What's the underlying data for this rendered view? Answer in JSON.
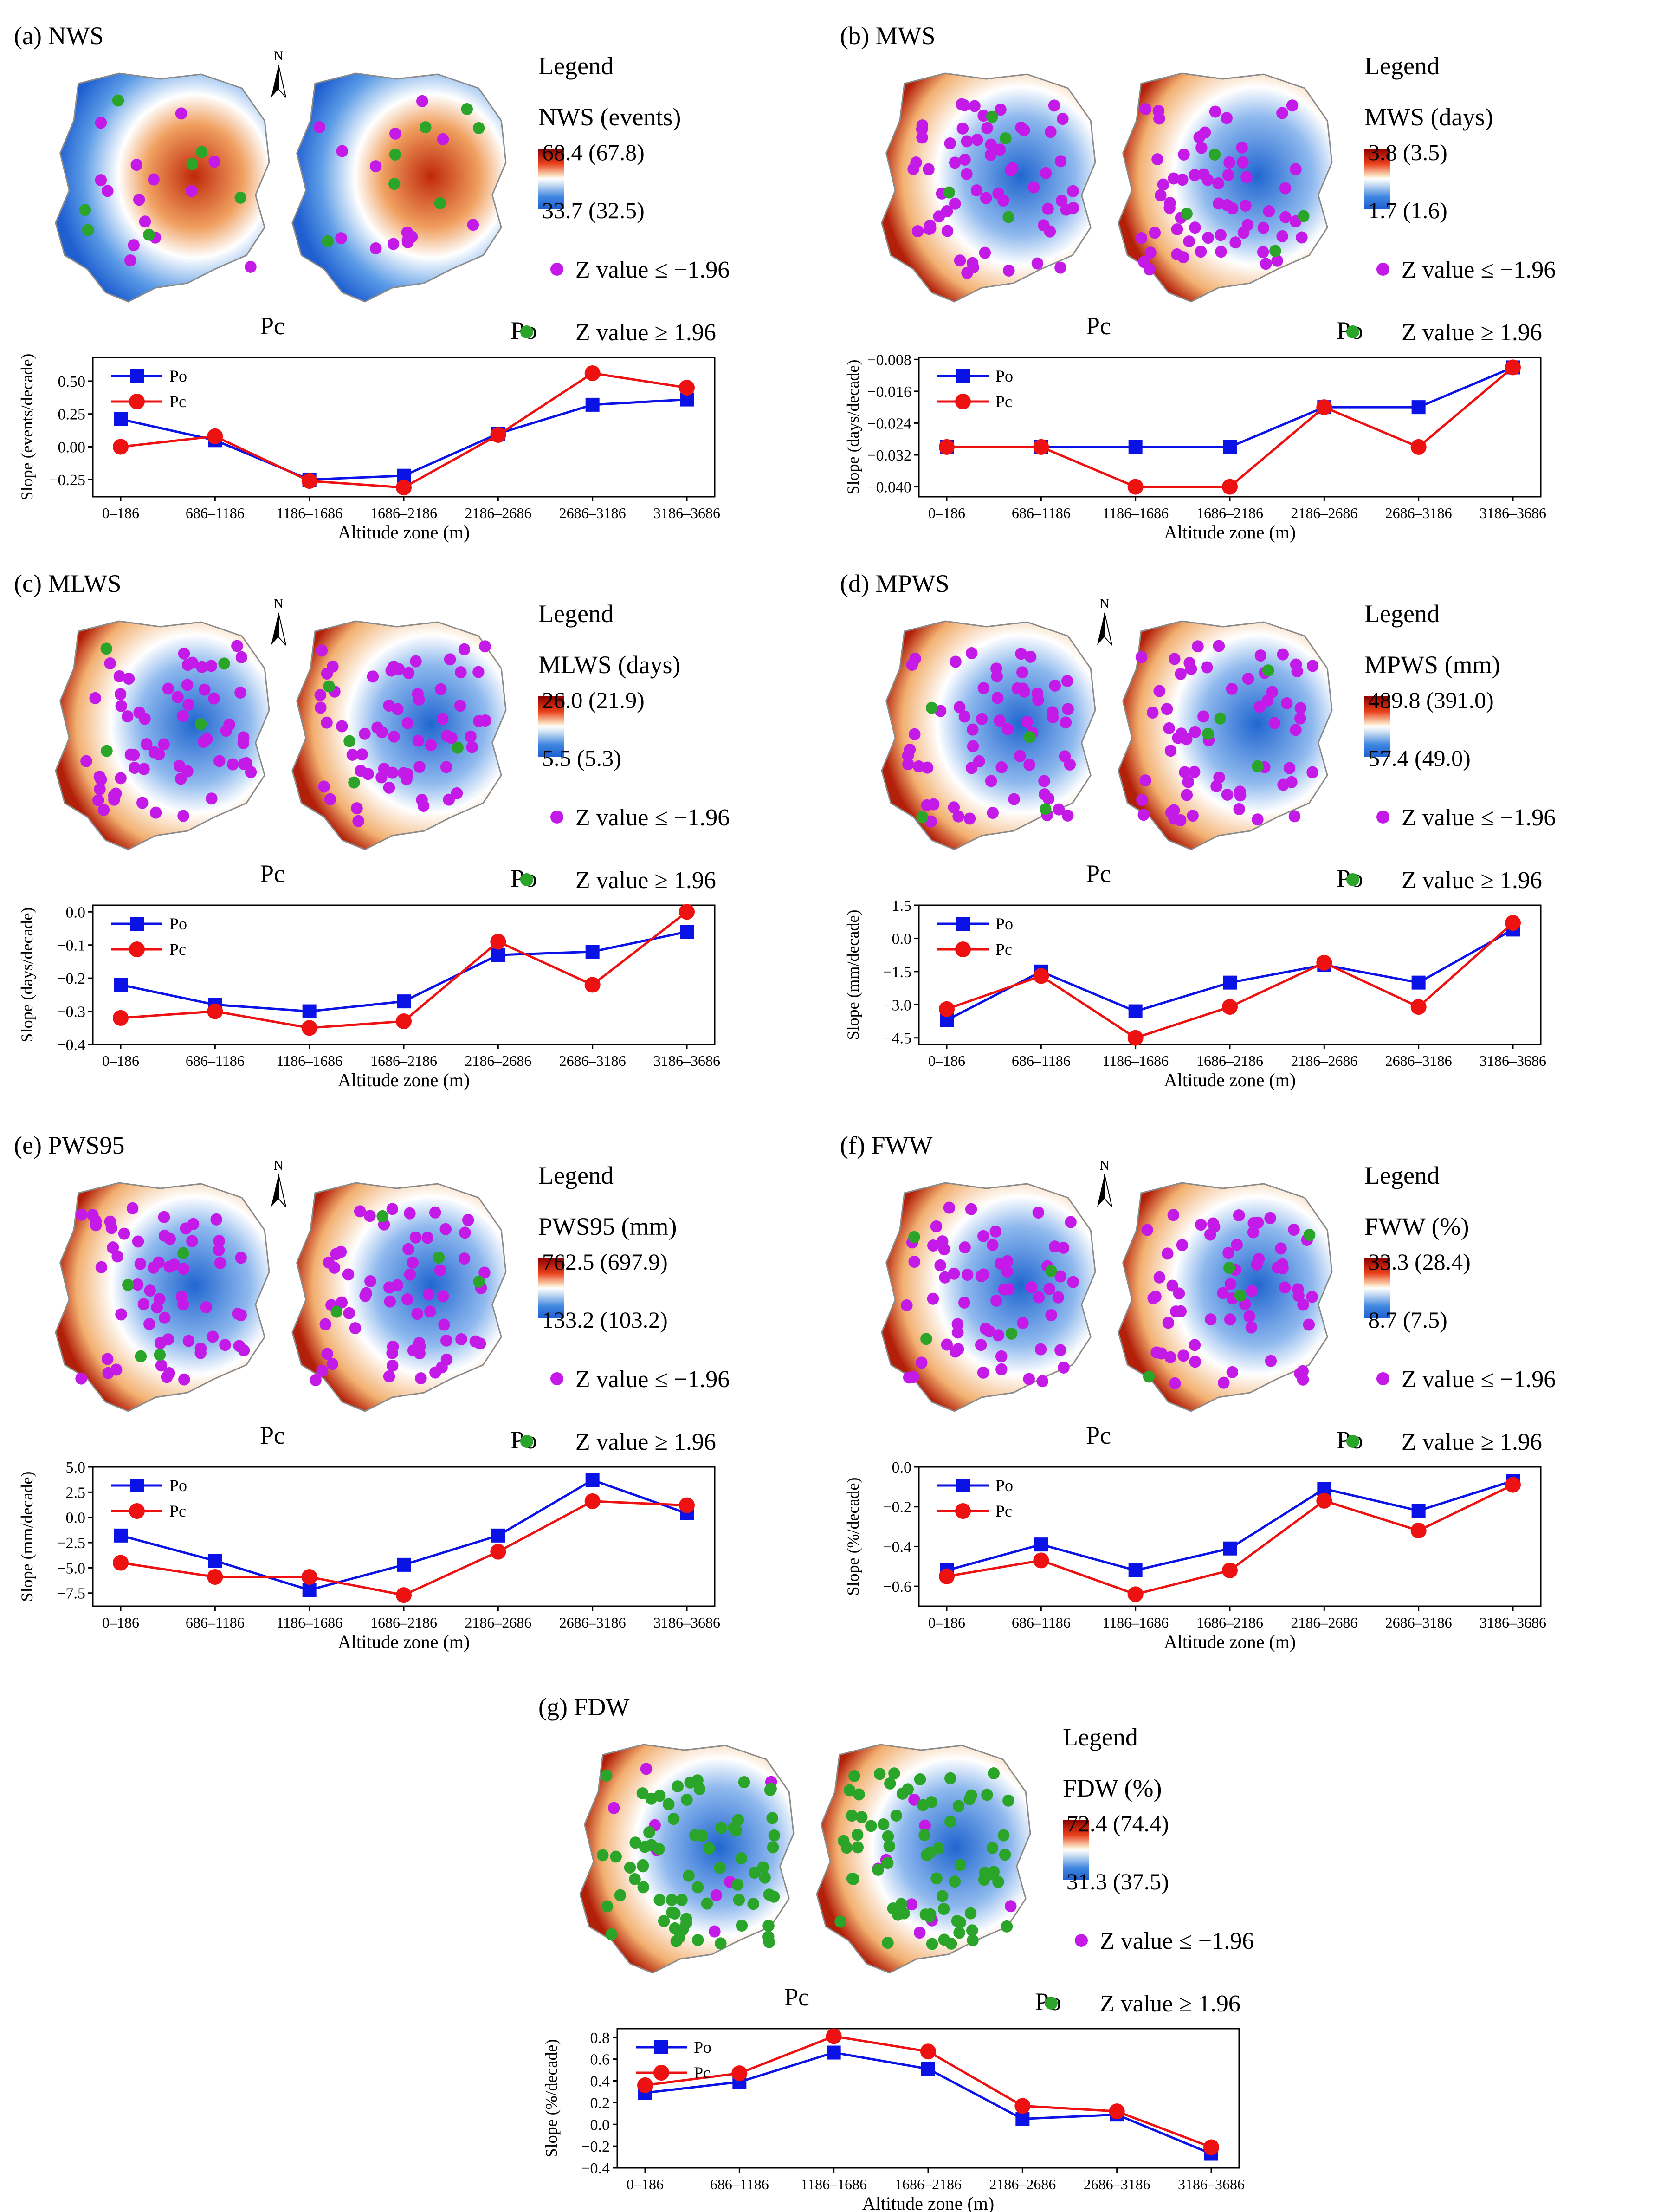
{
  "figure": {
    "north_label": "N",
    "legend_title": "Legend",
    "z_neg_label": "Z  value ≤ −1.96",
    "z_pos_label": "Z  value ≥ 1.96",
    "map_label_pc": "Pc",
    "map_label_po": "Po",
    "x_axis_label": "Altitude zone (m)",
    "colors": {
      "po": "#0a12e6",
      "pc": "#ee1111",
      "z_neg_dot": "#c41ae8",
      "z_pos_dot": "#2aa52a",
      "scale_high": "#8b0000",
      "scale_mid": "#ffffff",
      "scale_low": "#1f5fd0"
    }
  },
  "chart_data": [
    {
      "id": "a",
      "panel_title": "(a) NWS",
      "type": "line",
      "var_label": "NWS (events)",
      "scale_max": "68.4 (67.8)",
      "scale_min": "33.7 (32.5)",
      "ylabel": "Slope (events/decade)",
      "xlabel": "Altitude zone (m)",
      "categories": [
        "0–186",
        "686–1186",
        "1186–1686",
        "1686–2186",
        "2186–2686",
        "2686–3186",
        "3186–3686"
      ],
      "yticks": [
        "0.50",
        "0.25",
        "0.00",
        "−0.25"
      ],
      "ylim": [
        -0.38,
        0.68
      ],
      "series": [
        {
          "name": "Po",
          "values": [
            0.21,
            0.05,
            -0.25,
            -0.22,
            0.1,
            0.32,
            0.36
          ]
        },
        {
          "name": "Pc",
          "values": [
            0.0,
            0.08,
            -0.26,
            -0.31,
            0.09,
            0.56,
            0.45
          ]
        }
      ]
    },
    {
      "id": "b",
      "panel_title": "(b) MWS",
      "type": "line",
      "var_label": "MWS (days)",
      "scale_max": "3.8 (3.5)",
      "scale_min": "1.7 (1.6)",
      "ylabel": "Slope (days/decade)",
      "xlabel": "Altitude zone (m)",
      "categories": [
        "0–186",
        "686–1186",
        "1186–1686",
        "1686–2186",
        "2186–2686",
        "2686–3186",
        "3186–3686"
      ],
      "yticks": [
        "−0.008",
        "−0.016",
        "−0.024",
        "−0.032",
        "−0.040"
      ],
      "ylim": [
        -0.0425,
        -0.0075
      ],
      "series": [
        {
          "name": "Po",
          "values": [
            -0.03,
            -0.03,
            -0.03,
            -0.03,
            -0.02,
            -0.02,
            -0.01
          ]
        },
        {
          "name": "Pc",
          "values": [
            -0.03,
            -0.03,
            -0.04,
            -0.04,
            -0.02,
            -0.03,
            -0.01
          ]
        }
      ]
    },
    {
      "id": "c",
      "panel_title": "(c) MLWS",
      "type": "line",
      "var_label": "MLWS (days)",
      "scale_max": "26.0 (21.9)",
      "scale_min": "5.5 (5.3)",
      "ylabel": "Slope (days/decade)",
      "xlabel": "Altitude zone (m)",
      "categories": [
        "0–186",
        "686–1186",
        "1186–1686",
        "1686–2186",
        "2186–2686",
        "2686–3186",
        "3186–3686"
      ],
      "yticks": [
        "0.0",
        "−0.1",
        "−0.2",
        "−0.3",
        "−0.4"
      ],
      "ylim": [
        -0.4,
        0.02
      ],
      "series": [
        {
          "name": "Po",
          "values": [
            -0.22,
            -0.28,
            -0.3,
            -0.27,
            -0.13,
            -0.12,
            -0.06
          ]
        },
        {
          "name": "Pc",
          "values": [
            -0.32,
            -0.3,
            -0.35,
            -0.33,
            -0.09,
            -0.22,
            0.0
          ]
        }
      ]
    },
    {
      "id": "d",
      "panel_title": "(d) MPWS",
      "type": "line",
      "var_label": "MPWS (mm)",
      "scale_max": "489.8 (391.0)",
      "scale_min": "57.4 (49.0)",
      "ylabel": "Slope (mm/decade)",
      "xlabel": "Altitude zone (m)",
      "categories": [
        "0–186",
        "686–1186",
        "1186–1686",
        "1686–2186",
        "2186–2686",
        "2686–3186",
        "3186–3686"
      ],
      "yticks": [
        "1.5",
        "0.0",
        "−1.5",
        "−3.0",
        "−4.5"
      ],
      "ylim": [
        -4.8,
        1.5
      ],
      "series": [
        {
          "name": "Po",
          "values": [
            -3.7,
            -1.5,
            -3.3,
            -2.0,
            -1.2,
            -2.0,
            0.4
          ]
        },
        {
          "name": "Pc",
          "values": [
            -3.2,
            -1.7,
            -4.5,
            -3.1,
            -1.1,
            -3.1,
            0.7
          ]
        }
      ]
    },
    {
      "id": "e",
      "panel_title": "(e) PWS95",
      "type": "line",
      "var_label": "PWS95 (mm)",
      "scale_max": "762.5 (697.9)",
      "scale_min": "133.2 (103.2)",
      "ylabel": "Slope (mm/decade)",
      "xlabel": "Altitude zone (m)",
      "categories": [
        "0–186",
        "686–1186",
        "1186–1686",
        "1686–2186",
        "2186–2686",
        "2686–3186",
        "3186–3686"
      ],
      "yticks": [
        "5.0",
        "2.5",
        "0.0",
        "−2.5",
        "−5.0",
        "−7.5"
      ],
      "ylim": [
        -8.8,
        5.0
      ],
      "series": [
        {
          "name": "Po",
          "values": [
            -1.8,
            -4.3,
            -7.2,
            -4.7,
            -1.8,
            3.7,
            0.4
          ]
        },
        {
          "name": "Pc",
          "values": [
            -4.5,
            -5.9,
            -5.9,
            -7.7,
            -3.4,
            1.6,
            1.2
          ]
        }
      ]
    },
    {
      "id": "f",
      "panel_title": "(f) FWW",
      "type": "line",
      "var_label": "FWW (%)",
      "scale_max": "33.3 (28.4)",
      "scale_min": "8.7 (7.5)",
      "ylabel": "Slope (%/decade)",
      "xlabel": "Altitude zone (m)",
      "categories": [
        "0–186",
        "686–1186",
        "1186–1686",
        "1686–2186",
        "2186–2686",
        "2686–3186",
        "3186–3686"
      ],
      "yticks": [
        "0.0",
        "−0.2",
        "−0.4",
        "−0.6"
      ],
      "ylim": [
        -0.7,
        0.0
      ],
      "series": [
        {
          "name": "Po",
          "values": [
            -0.52,
            -0.39,
            -0.52,
            -0.41,
            -0.11,
            -0.22,
            -0.07
          ]
        },
        {
          "name": "Pc",
          "values": [
            -0.55,
            -0.47,
            -0.64,
            -0.52,
            -0.17,
            -0.32,
            -0.09
          ]
        }
      ]
    },
    {
      "id": "g",
      "panel_title": "(g) FDW",
      "type": "line",
      "var_label": "FDW (%)",
      "scale_max": "72.4 (74.4)",
      "scale_min": "31.3 (37.5)",
      "ylabel": "Slope (%/decade)",
      "xlabel": "Altitude zone (m)",
      "categories": [
        "0–186",
        "686–1186",
        "1186–1686",
        "1686–2186",
        "2186–2686",
        "2686–3186",
        "3186–3686"
      ],
      "yticks": [
        "0.8",
        "0.6",
        "0.4",
        "0.2",
        "0.0",
        "−0.2",
        "−0.4"
      ],
      "ylim": [
        -0.4,
        0.88
      ],
      "series": [
        {
          "name": "Po",
          "values": [
            0.29,
            0.39,
            0.66,
            0.51,
            0.05,
            0.09,
            -0.27
          ]
        },
        {
          "name": "Pc",
          "values": [
            0.36,
            0.47,
            0.81,
            0.67,
            0.17,
            0.12,
            -0.21
          ]
        }
      ]
    }
  ]
}
